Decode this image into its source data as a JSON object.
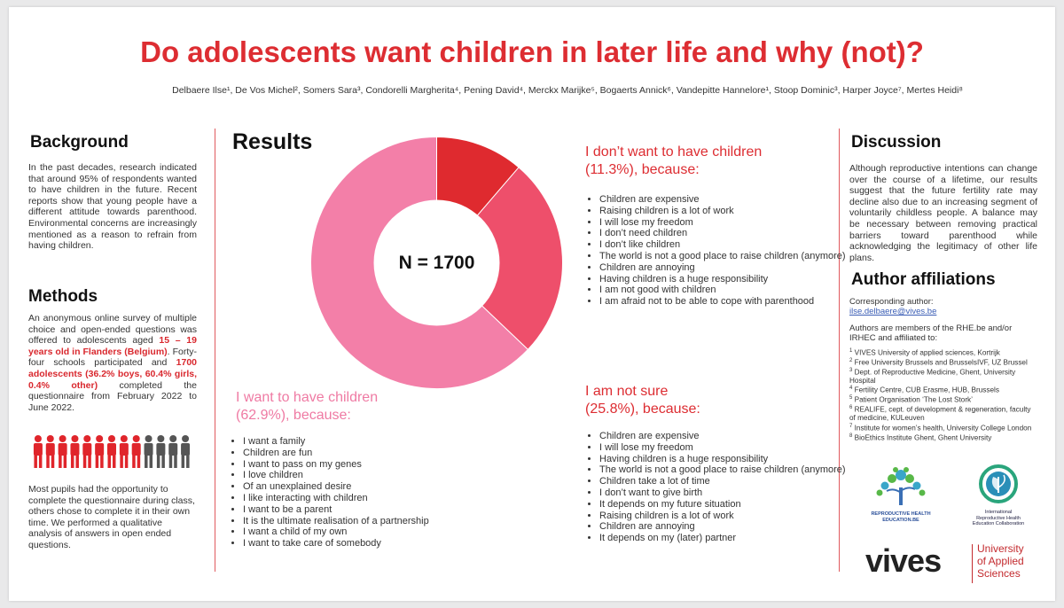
{
  "title": "Do adolescents want children in later life and why (not)?",
  "authors": "Delbaere Ilse¹, De Vos Michel², Somers Sara³, Condorelli Margherita⁴, Pening David⁴, Merckx Marijke⁵, Bogaerts Annick⁶, Vandepitte Hannelore¹, Stoop Dominic³, Harper Joyce⁷, Mertes Heidi⁸",
  "background": {
    "heading": "Background",
    "text": "In the past decades, research indicated that around 95% of respondents wanted to have children in the future. Recent reports show that young people have a different attitude towards parenthood. Environmental concerns are increasingly mentioned as a reason to refrain from having children."
  },
  "methods": {
    "heading": "Methods",
    "t1": "An anonymous online survey of multiple choice and open-ended questions was offered to adolescents aged ",
    "t2": "15 – 19 years old in Flanders (Belgium)",
    "t3": ". Forty-four schools participated and ",
    "t4": "1700 adolescents (36.2% boys, 60.4% girls, 0.4% other)",
    "t5": " completed the questionnaire from February 2022 to June 2022.",
    "pupils": "Most pupils had the opportunity to complete the questionnaire during class, others chose to complete it in their own time. We performed a qualitative analysis of answers in open ended questions.",
    "people_red": 9,
    "people_grey": 4
  },
  "results": {
    "heading": "Results",
    "n_label": "N = 1700",
    "want": {
      "heading_l1": "I want to have children",
      "heading_l2": "(62.9%), because:",
      "reasons": [
        "I want a family",
        "Children are fun",
        "I want to pass on my genes",
        "I love children",
        "Of an unexplained desire",
        "I like interacting with children",
        "I want to be a parent",
        "It is the ultimate realisation of a partnership",
        "I want a child of my own",
        "I want to take care of somebody"
      ]
    },
    "dont": {
      "heading_l1": "I don’t want to have children",
      "heading_l2": "(11.3%), because:",
      "reasons": [
        "Children are expensive",
        "Raising children is a lot of work",
        "I will lose my freedom",
        "I don’t need children",
        "I don’t like children",
        "The world is not a good place to raise children (anymore)",
        "Children are annoying",
        "Having children is a huge responsibility",
        "I am not good with children",
        "I am afraid not to be able to cope with parenthood"
      ]
    },
    "notsure": {
      "heading_l1": "I am not sure",
      "heading_l2": "(25.8%), because:",
      "reasons": [
        "Children are expensive",
        "I will lose my freedom",
        "Having children is a huge responsibility",
        "The world is not a good place to raise children (anymore)",
        "Children take a lot of time",
        "I don’t want to give birth",
        "It depends on my future situation",
        "Raising children is a lot of work",
        "Children are annoying",
        "It depends on my (later) partner"
      ]
    }
  },
  "chart_data": {
    "type": "pie",
    "categories": [
      "I want to have children",
      "I don’t want to have children",
      "I am not sure"
    ],
    "values": [
      62.9,
      11.3,
      25.8
    ],
    "colors": [
      "#f37fa8",
      "#df2a2f",
      "#ee4f6b"
    ]
  },
  "discussion": {
    "heading": "Discussion",
    "text": "Although reproductive intentions can change over the course of a lifetime, our results suggest that the future fertility rate may decline also due to an increasing segment of voluntarily childless people. A balance may be necessary between removing practical barriers toward parenthood while acknowledging the legitimacy of other life plans."
  },
  "affiliations": {
    "heading": "Author affiliations",
    "corresponding": "Corresponding author:",
    "email": "ilse.delbaere@vives.be",
    "members": "Authors are members of the RHE.be and/or IRHEC and affiliated to:",
    "list": [
      {
        "n": "1",
        "text": "VIVES University of applied sciences, Kortrijk"
      },
      {
        "n": "2",
        "text": "Free University Brussels and BrusselsIVF, UZ Brussel"
      },
      {
        "n": "3",
        "text": "Dept. of Reproductive Medicine, Ghent, University Hospital"
      },
      {
        "n": "4",
        "text": "Fertility Centre, CUB Erasme, HUB, Brussels"
      },
      {
        "n": "5",
        "text": "Patient Organisation ‘The Lost Stork’"
      },
      {
        "n": "6",
        "text": "REALIFE, cept. of development & regeneration, faculty of medicine, KULeuven"
      },
      {
        "n": "7",
        "text": "Institute for women’s health, University College London"
      },
      {
        "n": "8",
        "text": "BioEthics Institute Ghent, Ghent University"
      }
    ]
  },
  "logos": {
    "rhe": "REPRODUCTIVE HEALTH EDUCATION.BE",
    "irhec_l1": "International",
    "irhec_l2": "Reproductive Health",
    "irhec_l3": "Education Collaboration",
    "vives": "vives",
    "vives_sub_l1": "University",
    "vives_sub_l2": "of Applied",
    "vives_sub_l3": "Sciences"
  }
}
